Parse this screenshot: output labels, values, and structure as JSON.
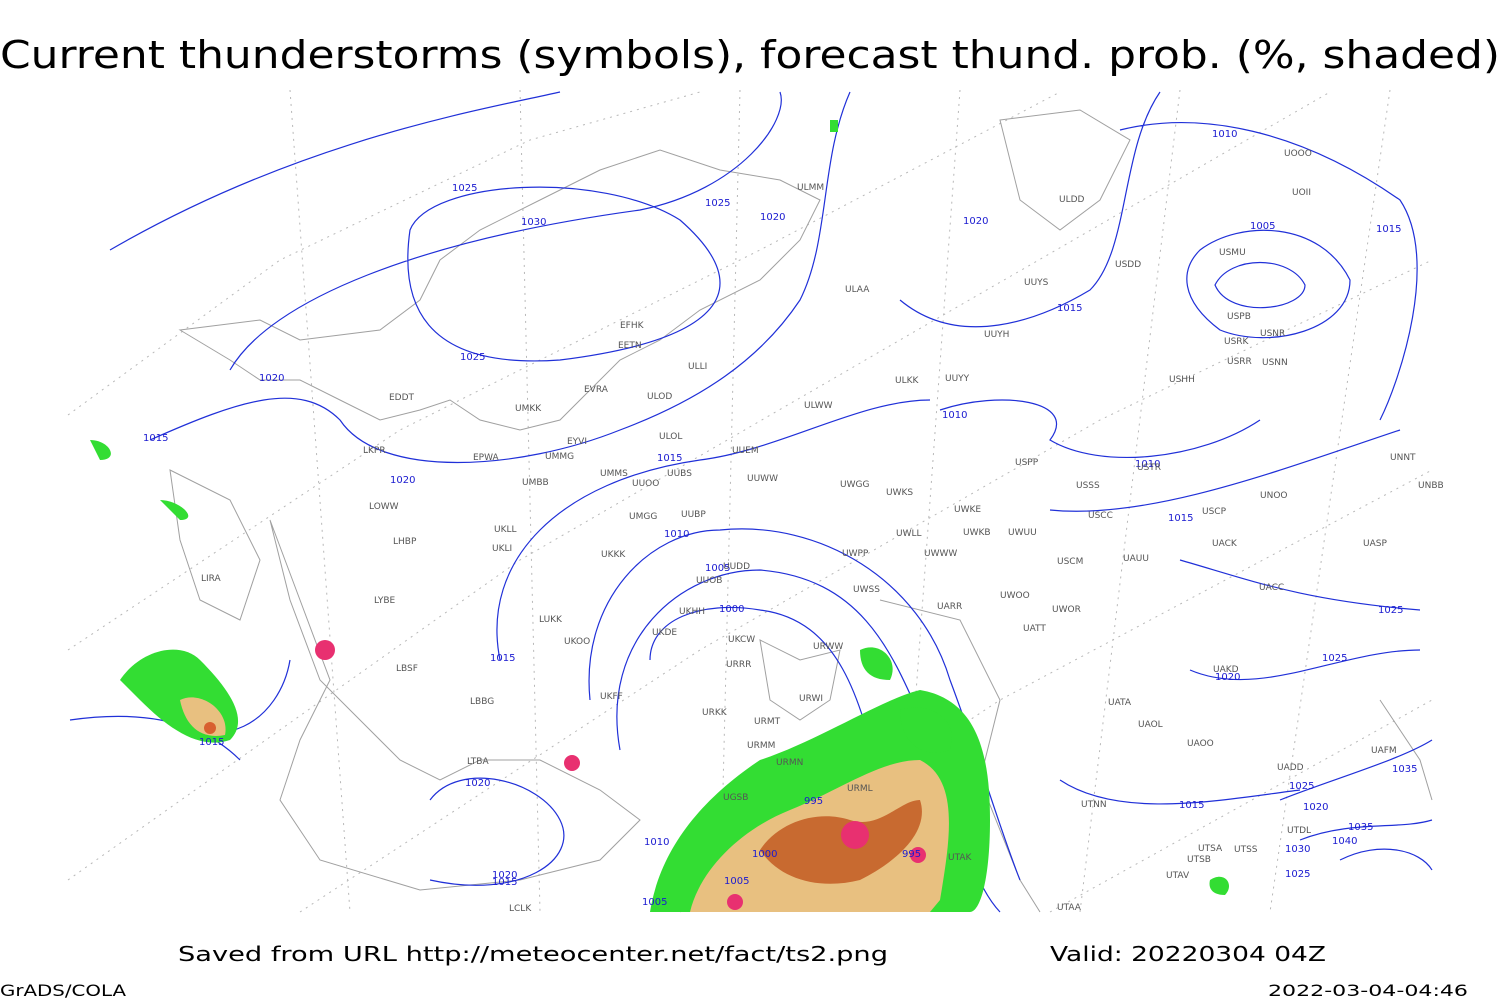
{
  "header": {
    "title": "Current thunderstorms (symbols), forecast thund. prob. (%, shaded)"
  },
  "footer": {
    "source": "Saved from URL http://meteocenter.net/fact/ts2.png",
    "valid": "Valid: 20220304 04Z",
    "software": "GrADS/COLA",
    "timestamp": "2022-03-04-04:46"
  },
  "isobar_labels": [
    "1025",
    "1030",
    "1025",
    "1020",
    "1020",
    "1010",
    "1005",
    "1015",
    "1015",
    "1025",
    "1020",
    "1015",
    "1010",
    "1010",
    "1015",
    "1020",
    "1015",
    "1010",
    "1005",
    "1000",
    "1015",
    "1025",
    "1025",
    "1020",
    "1015",
    "1020",
    "995",
    "1015",
    "1025",
    "1035",
    "1020",
    "1035",
    "1040",
    "1030",
    "1025",
    "1010",
    "1000",
    "995",
    "1005",
    "1005",
    "1020",
    "1015"
  ],
  "stations": [
    "ULMM",
    "ULDD",
    "USDD",
    "UUYS",
    "ULAA",
    "EFHK",
    "EETN",
    "UUYH",
    "ULLI",
    "ULKK",
    "UUYY",
    "USHH",
    "EVRA",
    "UMKK",
    "ULOD",
    "EDDT",
    "ULWW",
    "ULOL",
    "EYVI",
    "UUEM",
    "EPWA",
    "UMMG",
    "LKPR",
    "UMMS",
    "UUOO",
    "UUBS",
    "UUWW",
    "UWGG",
    "UWKS",
    "USSS",
    "UNOO",
    "UNNT",
    "UNBB",
    "UMBB",
    "LOWW",
    "UUBP",
    "UMGG",
    "UWKE",
    "UWKB",
    "UWUU",
    "USCC",
    "USCP",
    "UACK",
    "UASP",
    "UKLL",
    "LHBP",
    "UKLI",
    "UKKK",
    "UWPP",
    "UWLL",
    "UWWW",
    "USCM",
    "UAUU",
    "LIRA",
    "LYBE",
    "UUOB",
    "UUDD",
    "UWSS",
    "UARR",
    "UWOO",
    "UWOR",
    "UACC",
    "LUKK",
    "UKHH",
    "UKDE",
    "UKCW",
    "UKOO",
    "URWW",
    "UATT",
    "LBSF",
    "URRR",
    "UAKD",
    "UKFF",
    "URWI",
    "URKK",
    "URMT",
    "UATA",
    "UAOL",
    "UAOO",
    "LBBG",
    "URMM",
    "URMN",
    "URML",
    "UGSB",
    "LTBA",
    "UTNN",
    "UTSA",
    "UTSB",
    "UTAK",
    "UTAV",
    "UTSS",
    "UTDL",
    "UAFM",
    "UADD",
    "UTAA",
    "LCLK",
    "USPP",
    "USTR",
    "USRR",
    "USNN",
    "USRK",
    "USNR",
    "USPB",
    "USMU",
    "UOOO",
    "UOII"
  ]
}
